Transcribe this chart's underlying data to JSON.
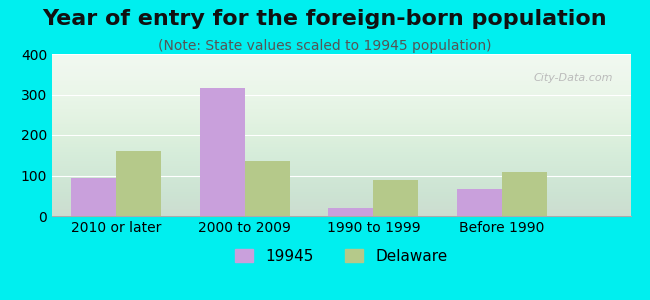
{
  "title": "Year of entry for the foreign-born population",
  "subtitle": "(Note: State values scaled to 19945 population)",
  "categories": [
    "2010 or later",
    "2000 to 2009",
    "1990 to 1999",
    "Before 1990"
  ],
  "values_19945": [
    93,
    315,
    20,
    67
  ],
  "values_delaware": [
    160,
    135,
    90,
    108
  ],
  "bar_color_19945": "#c9a0dc",
  "bar_color_delaware": "#b5c98a",
  "background_outer": "#00efef",
  "background_plot_top": "#f0f8f0",
  "background_plot_bottom": "#e8f5e0",
  "ylim": [
    0,
    400
  ],
  "yticks": [
    0,
    100,
    200,
    300,
    400
  ],
  "legend_label_19945": "19945",
  "legend_label_delaware": "Delaware",
  "bar_width": 0.35,
  "title_fontsize": 16,
  "subtitle_fontsize": 10,
  "tick_fontsize": 10,
  "legend_fontsize": 11
}
